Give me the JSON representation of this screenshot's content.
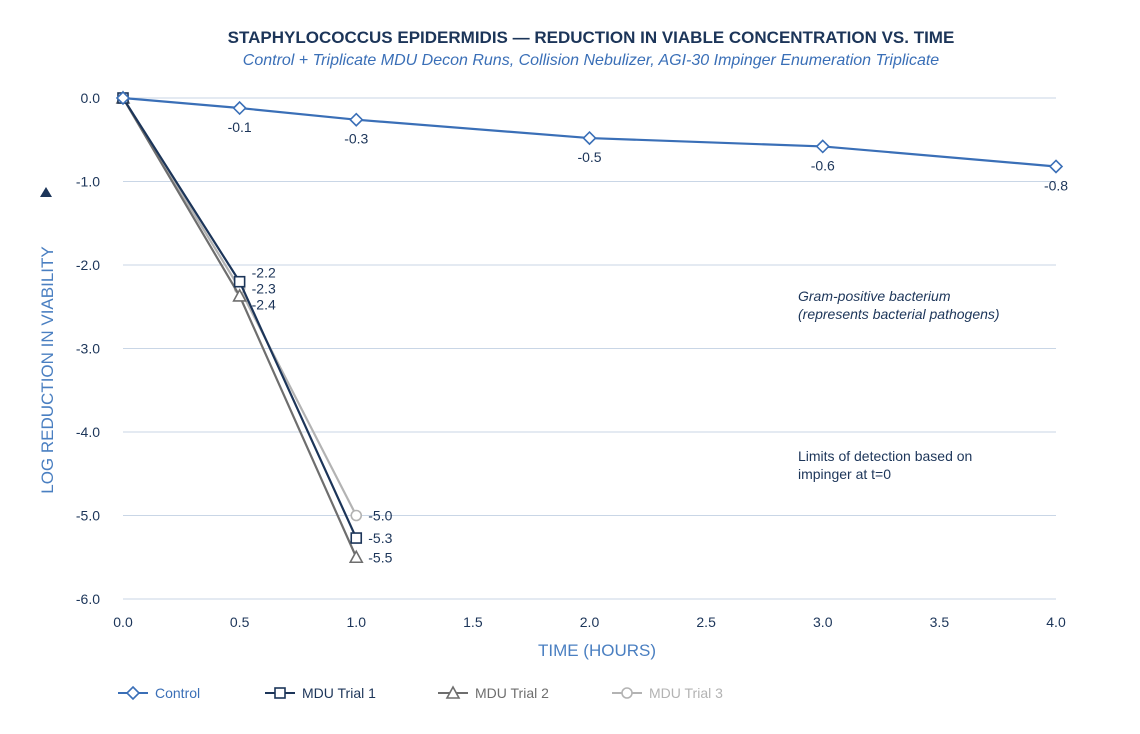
{
  "chart_data": {
    "type": "line",
    "title": "STAPHYLOCOCCUS EPIDERMIDIS — REDUCTION IN VIABLE CONCENTRATION VS. TIME",
    "subtitle": "Control + Triplicate MDU Decon Runs, Collision Nebulizer, AGI-30 Impinger Enumeration Triplicate",
    "xlabel": "TIME (HOURS)",
    "ylabel": "LOG REDUCTION IN VIABILITY",
    "xlim": [
      0,
      4
    ],
    "ylim": [
      -6,
      0
    ],
    "xticks": [
      "0.0",
      "0.5",
      "1.0",
      "1.5",
      "2.0",
      "2.5",
      "3.0",
      "3.5",
      "4.0"
    ],
    "yticks": [
      "0.0",
      "-1.0",
      "-2.0",
      "-3.0",
      "-4.0",
      "-5.0",
      "-6.0"
    ],
    "grid": true,
    "legend_position": "bottom",
    "series": [
      {
        "name": "Control",
        "color": "#3a6fb7",
        "marker": "diamond",
        "x": [
          0,
          0.5,
          1,
          2,
          3,
          4
        ],
        "y": [
          0,
          -0.12,
          -0.26,
          -0.48,
          -0.58,
          -0.82
        ],
        "labels": [
          "",
          "-0.1",
          "-0.3",
          "-0.5",
          "-0.6",
          "-0.8"
        ]
      },
      {
        "name": "MDU Trial 1",
        "color": "#1c3559",
        "marker": "square",
        "x": [
          0,
          0.5,
          1
        ],
        "y": [
          0,
          -2.2,
          -5.27
        ],
        "labels": [
          "",
          "-2.2",
          "-5.3"
        ]
      },
      {
        "name": "MDU Trial 2",
        "color": "#6e6e6e",
        "marker": "triangle",
        "x": [
          0,
          0.5,
          1
        ],
        "y": [
          0,
          -2.37,
          -5.5
        ],
        "labels": [
          "",
          "-2.4",
          "-5.5"
        ]
      },
      {
        "name": "MDU Trial 3",
        "color": "#b3b3b3",
        "marker": "circle",
        "x": [
          0,
          0.5,
          1
        ],
        "y": [
          0,
          -2.28,
          -5.0
        ],
        "labels": [
          "",
          "-2.3",
          "-5.0"
        ]
      }
    ],
    "annotations": [
      {
        "lines": [
          "Gram-positive bacterium",
          "(represents bacterial pathogens)"
        ],
        "italic": true
      },
      {
        "lines": [
          "Limits of detection based on",
          "impinger at t=0"
        ],
        "italic": false
      }
    ]
  }
}
